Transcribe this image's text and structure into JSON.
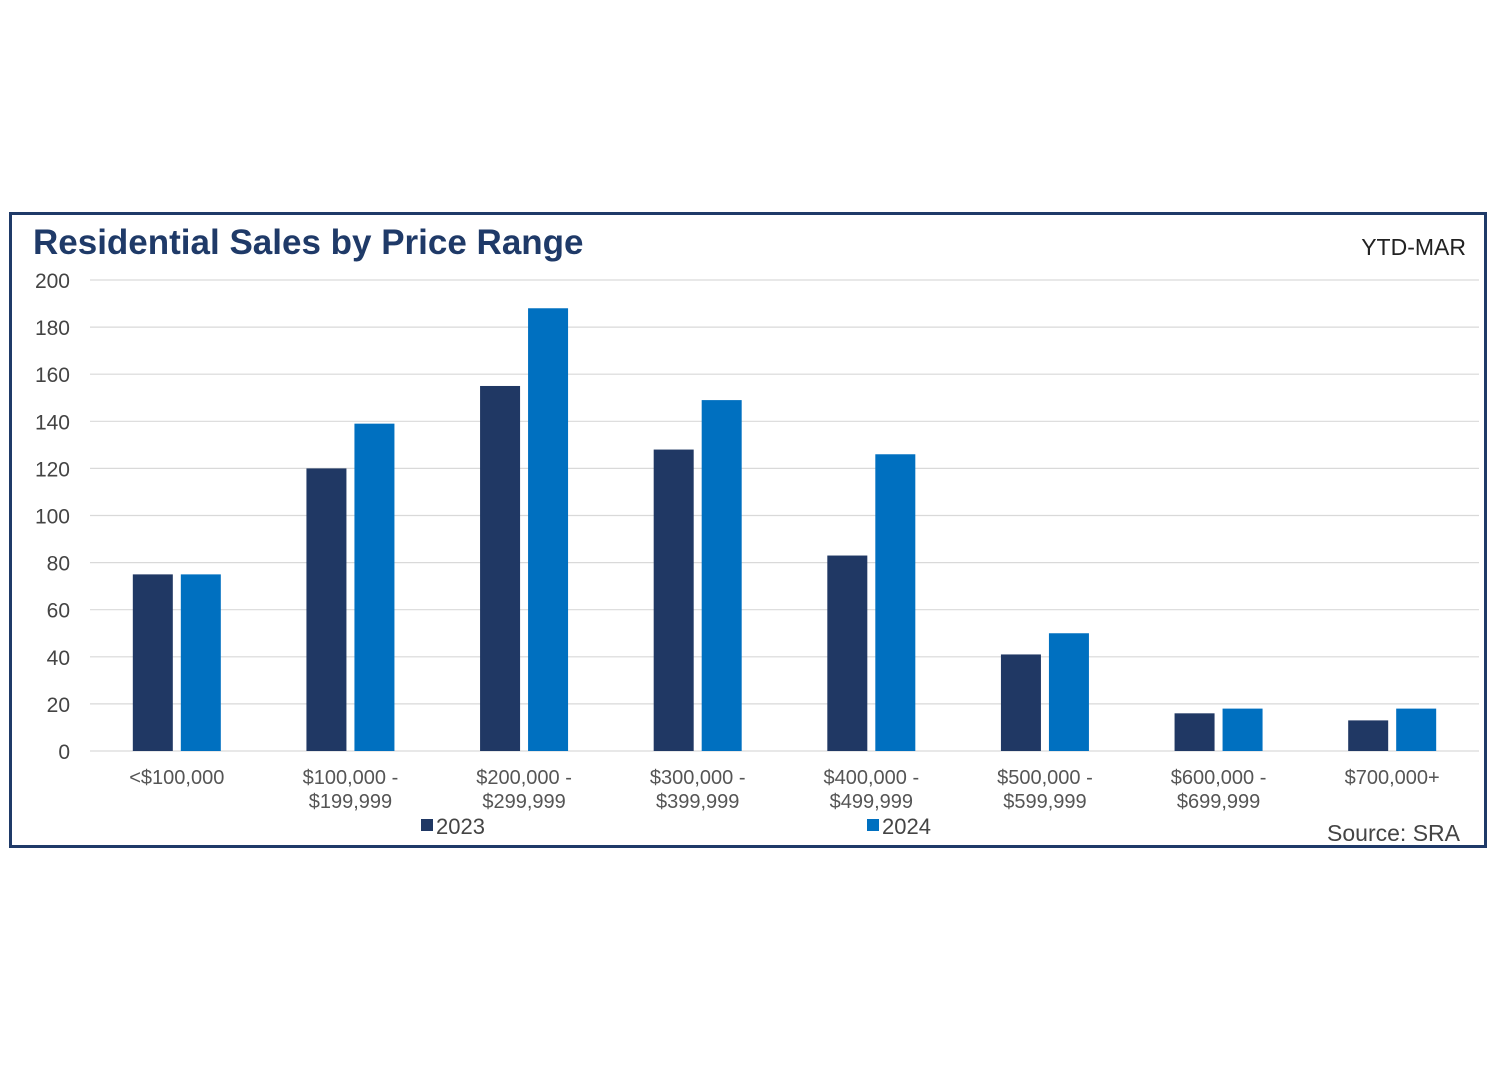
{
  "chart_data": {
    "type": "bar",
    "title": "Residential Sales by Price Range",
    "subtitle": "YTD-MAR",
    "xlabel": "",
    "ylabel": "",
    "ylim": [
      0,
      200
    ],
    "yticks": [
      0,
      20,
      40,
      60,
      80,
      100,
      120,
      140,
      160,
      180,
      200
    ],
    "grid": true,
    "legend_position": "bottom",
    "categories": [
      [
        "<$100,000"
      ],
      [
        "$100,000 -",
        "$199,999"
      ],
      [
        "$200,000 -",
        "$299,999"
      ],
      [
        "$300,000 -",
        "$399,999"
      ],
      [
        "$400,000 -",
        "$499,999"
      ],
      [
        "$500,000 -",
        "$599,999"
      ],
      [
        "$600,000 -",
        "$699,999"
      ],
      [
        "$700,000+"
      ]
    ],
    "series": [
      {
        "name": "2023",
        "color": "#203864",
        "values": [
          75,
          120,
          155,
          128,
          83,
          41,
          16,
          13
        ]
      },
      {
        "name": "2024",
        "color": "#0070c0",
        "values": [
          75,
          139,
          188,
          149,
          126,
          50,
          18,
          18
        ]
      }
    ],
    "source": "Source: SRA"
  }
}
